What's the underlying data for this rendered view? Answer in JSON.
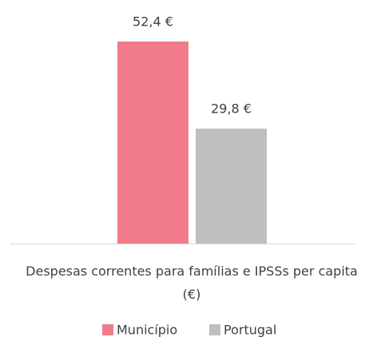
{
  "chart_data": {
    "type": "bar",
    "categories": [
      "Despesas correntes para famílias e IPSSs per capita (€)"
    ],
    "series": [
      {
        "name": "Município",
        "color": "#f07c8b",
        "values": [
          52.4
        ],
        "value_labels": [
          "52,4 €"
        ]
      },
      {
        "name": "Portugal",
        "color": "#bfbfbf",
        "values": [
          29.8
        ],
        "value_labels": [
          "29,8 €"
        ]
      }
    ],
    "legend": "bottom"
  }
}
